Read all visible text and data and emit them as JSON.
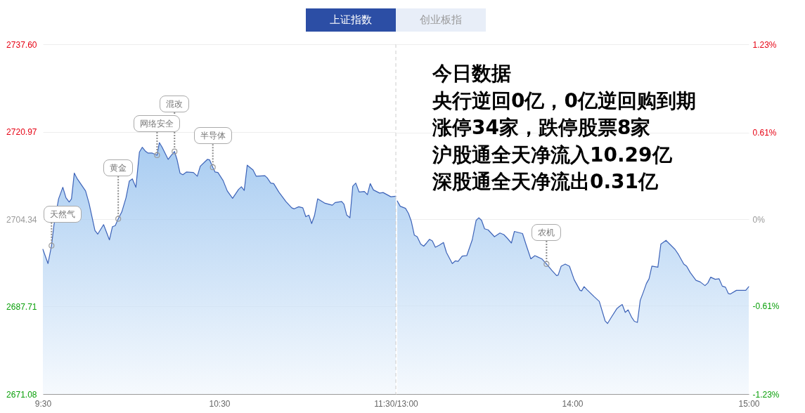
{
  "chart_data": [
    {
      "type": "area",
      "title": "上证指数",
      "annotations": [
        "创业板指",
        {
          "text": "天然气",
          "x": 9.549,
          "y": 2699.3
        },
        {
          "text": "黄金",
          "x": 9.927,
          "y": 2704.4
        },
        {
          "text": "网络安全",
          "x": 10.147,
          "y": 2716.5
        },
        {
          "text": "混改",
          "x": 10.246,
          "y": 2717.2
        },
        {
          "text": "半导体",
          "x": 10.463,
          "y": 2714.2
        }
      ],
      "x": [
        9.5,
        9.529,
        9.549,
        9.563,
        9.589,
        9.613,
        9.631,
        9.649,
        9.662,
        9.678,
        9.695,
        9.742,
        9.762,
        9.795,
        9.811,
        9.844,
        9.877,
        9.894,
        9.91,
        9.927,
        9.947,
        9.971,
        9.99,
        10.007,
        10.027,
        10.047,
        10.063,
        10.08,
        10.096,
        10.12,
        10.147,
        10.16,
        10.176,
        10.21,
        10.226,
        10.246,
        10.26,
        10.277,
        10.293,
        10.313,
        10.353,
        10.375,
        10.392,
        10.432,
        10.445,
        10.463,
        10.476,
        10.492,
        10.521,
        10.545,
        10.575,
        10.609,
        10.625,
        10.641,
        10.658,
        10.691,
        10.709,
        10.758,
        10.771,
        10.791,
        10.808,
        10.837,
        10.877,
        10.91,
        10.924,
        10.95,
        10.973,
        10.99,
        11.007,
        11.023,
        11.039,
        11.057,
        11.096,
        11.14,
        11.156,
        11.193,
        11.206,
        11.222,
        11.24,
        11.256,
        11.273,
        11.292,
        11.322,
        11.339,
        11.355,
        11.373,
        11.408,
        11.428,
        11.472,
        11.5
      ],
      "series": [
        {
          "color": "#3d63b8",
          "values": [
            2698.6,
            2695.9,
            2699.3,
            2703.3,
            2708.2,
            2710.4,
            2708.4,
            2707.6,
            2708.2,
            2713.1,
            2712.0,
            2709.7,
            2707.3,
            2702.2,
            2701.5,
            2703.3,
            2700.4,
            2702.9,
            2703.1,
            2704.4,
            2705.7,
            2708.4,
            2711.6,
            2712.0,
            2710.4,
            2717.1,
            2718.0,
            2717.3,
            2716.9,
            2716.9,
            2716.5,
            2718.9,
            2718.0,
            2715.7,
            2716.4,
            2717.2,
            2715.7,
            2713.1,
            2712.8,
            2713.3,
            2713.2,
            2712.5,
            2714.4,
            2715.7,
            2715.6,
            2714.2,
            2713.3,
            2713.2,
            2711.7,
            2709.7,
            2708.3,
            2710.0,
            2710.5,
            2709.8,
            2714.6,
            2713.7,
            2712.5,
            2712.6,
            2712.2,
            2711.2,
            2711.1,
            2709.5,
            2707.7,
            2706.5,
            2706.3,
            2706.7,
            2706.5,
            2704.8,
            2705.1,
            2703.5,
            2705.0,
            2708.2,
            2707.4,
            2707.0,
            2707.5,
            2707.7,
            2707.2,
            2705.1,
            2704.6,
            2710.6,
            2711.2,
            2709.5,
            2709.6,
            2709.0,
            2711.1,
            2709.9,
            2709.3,
            2709.4,
            2708.6,
            2708.7
          ]
        }
      ],
      "xlim": [
        9.5,
        11.5
      ],
      "xticks": [
        {
          "value": 9.5,
          "label": "9:30"
        },
        {
          "value": 10.5,
          "label": "10:30"
        },
        {
          "value": 11.5,
          "label": "11:30/13:00"
        }
      ],
      "ylim": [
        2671.08,
        2737.6
      ],
      "yticks": [
        2671.08,
        2687.71,
        2704.34,
        2720.97,
        {
          "value": 2737.6,
          "label": "2737.60"
        }
      ],
      "grid": "y",
      "ref_lines": [
        {
          "axis": "x",
          "value": 11.5,
          "color": "#cccccc",
          "line_style": "dashed"
        }
      ]
    },
    {
      "type": "area",
      "annotations": [
        "今日数据",
        "央行逆回0亿，0亿逆回购到期",
        "涨停34家，跌停股票8家",
        "沪股通全天净流入10.29亿",
        "深股通全天净流出0.31亿",
        {
          "text": "农机",
          "x": 13.854,
          "y": 2695.8
        }
      ],
      "x": [
        13.008,
        13.025,
        13.055,
        13.072,
        13.088,
        13.105,
        13.121,
        13.141,
        13.158,
        13.174,
        13.191,
        13.207,
        13.224,
        13.247,
        13.27,
        13.287,
        13.32,
        13.337,
        13.353,
        13.376,
        13.402,
        13.433,
        13.455,
        13.47,
        13.486,
        13.503,
        13.523,
        13.559,
        13.59,
        13.612,
        13.632,
        13.655,
        13.672,
        13.718,
        13.738,
        13.765,
        13.788,
        13.827,
        13.854,
        13.884,
        13.911,
        13.92,
        13.937,
        13.96,
        13.984,
        14.011,
        14.044,
        14.053,
        14.067,
        14.084,
        14.124,
        14.153,
        14.186,
        14.2,
        14.22,
        14.252,
        14.266,
        14.283,
        14.3,
        14.316,
        14.336,
        14.352,
        14.369,
        14.385,
        14.402,
        14.42,
        14.435,
        14.451,
        14.485,
        14.502,
        14.531,
        14.555,
        14.582,
        14.602,
        14.632,
        14.648,
        14.668,
        14.701,
        14.725,
        14.752,
        14.768,
        14.784,
        14.81,
        14.832,
        14.85,
        14.868,
        14.884,
        14.896,
        14.93,
        14.983,
        15
      ],
      "series": [
        {
          "color": "#3d63b8",
          "values": [
            2707.8,
            2706.8,
            2706.4,
            2705.4,
            2703.9,
            2701.3,
            2701.0,
            2699.6,
            2699.2,
            2699.8,
            2700.5,
            2700.2,
            2699.0,
            2699.4,
            2699.9,
            2698.0,
            2695.9,
            2696.4,
            2696.3,
            2697.3,
            2697.4,
            2700.4,
            2704.1,
            2704.6,
            2704.1,
            2702.5,
            2702.3,
            2701.0,
            2701.7,
            2701.4,
            2700.7,
            2699.8,
            2702.0,
            2701.6,
            2699.5,
            2696.8,
            2697.4,
            2696.8,
            2695.8,
            2694.6,
            2693.6,
            2693.7,
            2695.4,
            2695.8,
            2695.4,
            2692.8,
            2690.8,
            2690.7,
            2691.5,
            2690.9,
            2689.6,
            2688.7,
            2685.0,
            2684.5,
            2685.6,
            2687.3,
            2687.7,
            2688.1,
            2686.6,
            2687.1,
            2685.7,
            2684.9,
            2684.7,
            2688.9,
            2690.4,
            2692.1,
            2693.0,
            2695.4,
            2695.2,
            2699.6,
            2700.3,
            2699.5,
            2698.6,
            2697.6,
            2695.8,
            2695.4,
            2694.2,
            2692.7,
            2692.4,
            2691.7,
            2692.2,
            2693.3,
            2692.9,
            2693.0,
            2691.6,
            2691.4,
            2690.2,
            2690.1,
            2690.8,
            2690.8,
            2691.5
          ]
        }
      ],
      "xlim": [
        13,
        15
      ],
      "xticks": [
        {
          "value": 14,
          "label": "14:00"
        },
        {
          "value": 15,
          "label": "15:00"
        }
      ],
      "ylim": [
        2671.08,
        2737.6
      ],
      "y2lim": [
        -1.23,
        1.23
      ],
      "y2ticks": [
        {
          "value": -1.23,
          "label": "-1.23%"
        },
        {
          "value": -0.61,
          "label": "-0.61%"
        },
        {
          "value": 0,
          "label": "0%"
        },
        {
          "value": 0.61,
          "label": "0.61%"
        },
        {
          "value": 1.23,
          "label": "1.23%"
        }
      ],
      "grid": "y"
    }
  ]
}
